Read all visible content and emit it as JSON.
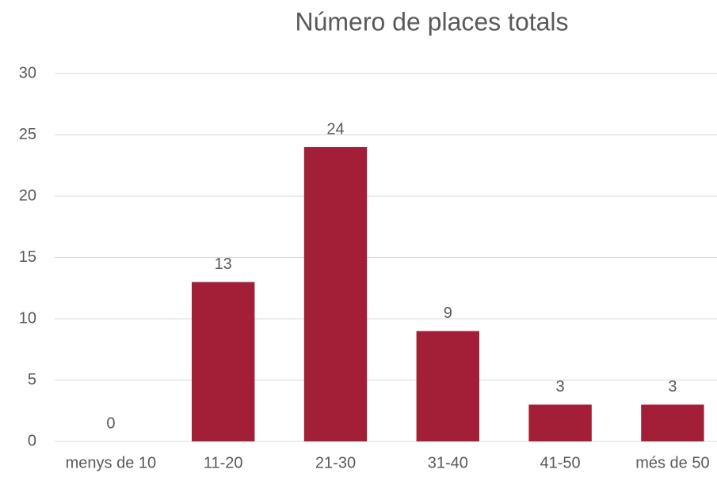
{
  "chart_data": {
    "type": "bar",
    "title": "Número de places totals",
    "categories": [
      "menys de 10",
      "11-20",
      "21-30",
      "31-40",
      "41-50",
      "més de 50"
    ],
    "values": [
      0,
      13,
      24,
      9,
      3,
      3
    ],
    "color": "#a31f37",
    "ylim": [
      0,
      30
    ],
    "yticks": [
      0,
      5,
      10,
      15,
      20,
      25,
      30
    ],
    "grid": true
  }
}
